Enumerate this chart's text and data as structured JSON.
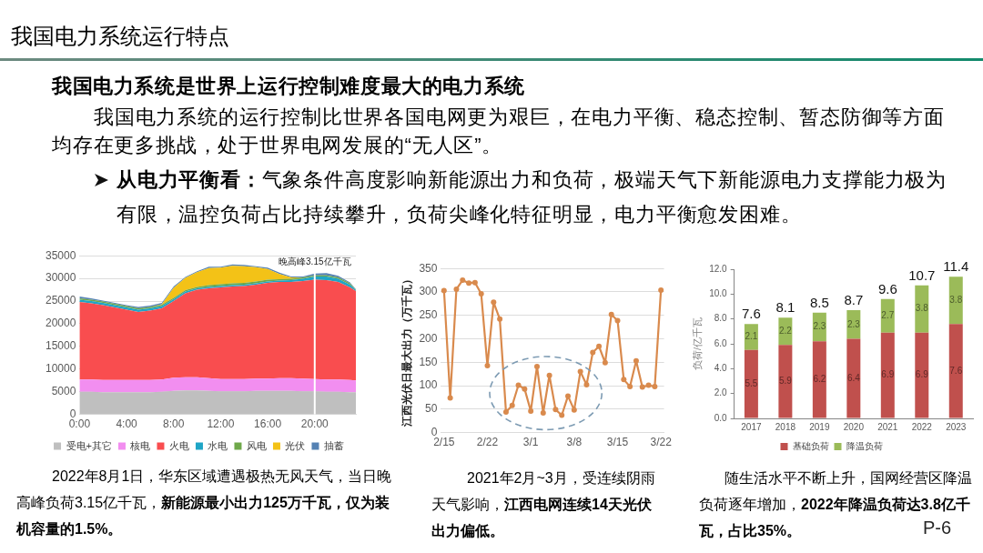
{
  "chart_data": [
    {
      "type": "other",
      "title": "我国电力系统运行特点",
      "subtitle": "我国电力系统是世界上运行控制难度最大的电力系统",
      "annotations": [
        "我国电力系统的运行控制比世界各国电网更为艰巨，在电力平衡、稳态控制、暂态防御等方面均存在更多挑战，处于世界电网发展的“无人区”。",
        "从电力平衡看：",
        "气象条件高度影响新能源出力和负荷，极端天气下新能源电力支撑能力极为",
        "有限，温控负荷占比持续攀升，负荷尖峰化特征明显，电力平衡愈发困难。",
        "P-6"
      ]
    },
    {
      "type": "area",
      "stacked": true,
      "x": [
        0,
        1,
        2,
        3,
        4,
        5,
        6,
        7,
        8,
        9,
        10,
        11,
        12,
        13,
        14,
        15,
        16,
        17,
        18,
        19,
        20,
        21,
        22,
        23,
        23.5
      ],
      "xlim": [
        0,
        23.5
      ],
      "xticks": [
        {
          "value": 0,
          "label": "0:00"
        },
        {
          "value": 4,
          "label": "4:00"
        },
        {
          "value": 8,
          "label": "8:00"
        },
        {
          "value": 12,
          "label": "12:00"
        },
        {
          "value": 16,
          "label": "16:00"
        },
        {
          "value": 20,
          "label": "20:00"
        }
      ],
      "ylim": [
        0,
        35000
      ],
      "yticks": [
        0,
        5000,
        10000,
        15000,
        20000,
        25000,
        30000,
        35000
      ],
      "grid": "y",
      "legend": "bottom",
      "series": [
        {
          "name": "受电+其它",
          "color": "#bfbfbf",
          "values": [
            5000,
            5000,
            4900,
            4900,
            4900,
            4900,
            4900,
            5000,
            5200,
            5300,
            5300,
            5200,
            5100,
            5100,
            5100,
            5200,
            5200,
            5200,
            5200,
            5100,
            5100,
            5000,
            5000,
            4900,
            4900
          ]
        },
        {
          "name": "核电",
          "color": "#f28ef0",
          "values": [
            2700,
            2700,
            2700,
            2700,
            2700,
            2700,
            2700,
            2700,
            2900,
            2900,
            2900,
            2800,
            2700,
            2700,
            2700,
            2700,
            2700,
            2800,
            2800,
            2800,
            2700,
            2700,
            2700,
            2700,
            2600
          ]
        },
        {
          "name": "火电",
          "color": "#f94d4f",
          "values": [
            17100,
            16800,
            16500,
            16000,
            15500,
            15000,
            15300,
            15700,
            16900,
            18500,
            19300,
            19800,
            20200,
            20400,
            20500,
            20700,
            21100,
            21200,
            21200,
            21500,
            21900,
            21900,
            21500,
            20400,
            19700
          ]
        },
        {
          "name": "水电",
          "color": "#1fa5c6",
          "values": [
            500,
            500,
            500,
            500,
            500,
            500,
            500,
            500,
            400,
            400,
            300,
            300,
            300,
            300,
            300,
            300,
            300,
            300,
            400,
            500,
            700,
            800,
            700,
            600,
            200
          ]
        },
        {
          "name": "风电",
          "color": "#6fa84a",
          "values": [
            300,
            300,
            300,
            300,
            300,
            300,
            300,
            300,
            300,
            300,
            300,
            400,
            400,
            400,
            400,
            400,
            400,
            300,
            300,
            300,
            300,
            300,
            300,
            300,
            100
          ]
        },
        {
          "name": "光伏",
          "color": "#f3c217",
          "values": [
            0,
            0,
            0,
            0,
            0,
            0,
            0,
            100,
            2200,
            2700,
            3300,
            3800,
            3700,
            3900,
            3700,
            3200,
            2400,
            1200,
            300,
            0,
            0,
            0,
            0,
            0,
            0
          ]
        },
        {
          "name": "抽蓄",
          "color": "#5582b3",
          "values": [
            400,
            300,
            200,
            200,
            200,
            300,
            300,
            300,
            300,
            200,
            200,
            300,
            200,
            300,
            300,
            200,
            300,
            300,
            200,
            200,
            400,
            500,
            400,
            200,
            100
          ]
        }
      ],
      "ref_lines": [
        {
          "axis": "x",
          "value": 20,
          "label": "晚高峰3.15亿千瓦",
          "color": "#ffffff"
        }
      ],
      "annotations": [
        "2022年8月1日，华东区域遭遇极热无风天气，当日晚",
        "高峰负荷3.15亿千瓦，",
        "新能源最小出力125万千瓦，仅为装",
        "机容量的1.5%。"
      ]
    },
    {
      "type": "line",
      "categories": [
        "2/15",
        null,
        null,
        null,
        null,
        null,
        null,
        "2/22",
        null,
        null,
        null,
        null,
        null,
        null,
        "3/1",
        null,
        null,
        null,
        null,
        null,
        null,
        "3/8",
        null,
        null,
        null,
        null,
        null,
        null,
        "3/15",
        null,
        null,
        null,
        null,
        null,
        null,
        "3/22"
      ],
      "values": [
        303,
        74,
        306,
        325,
        319,
        320,
        296,
        143,
        278,
        242,
        44,
        58,
        101,
        93,
        46,
        141,
        42,
        122,
        49,
        37,
        78,
        48,
        130,
        102,
        171,
        184,
        149,
        252,
        239,
        113,
        98,
        153,
        97,
        101,
        98,
        304
      ],
      "color": "#d98a4d",
      "marker": "circle",
      "ylabel": "江西光伏日最大出力（万千瓦）",
      "ylim": [
        0,
        350
      ],
      "yticks": [
        0,
        50,
        100,
        150,
        200,
        250,
        300,
        350
      ],
      "grid": "y",
      "annotations": [
        "2021年2月~3月，受连续阴雨",
        "天气影响，",
        "江西电网连续14天光伏",
        "出力偏低。"
      ]
    },
    {
      "type": "bar",
      "stacked": true,
      "categories": [
        "2017",
        "2018",
        "2019",
        "2020",
        "2021",
        "2022",
        "2023"
      ],
      "series": [
        {
          "name": "基础负荷",
          "color": "#c0504d",
          "values": [
            5.5,
            5.9,
            6.2,
            6.4,
            6.9,
            6.9,
            7.6
          ]
        },
        {
          "name": "降温负荷",
          "color": "#9bbb59",
          "values": [
            2.1,
            2.2,
            2.3,
            2.3,
            2.7,
            3.8,
            3.8
          ]
        }
      ],
      "data_labels": true,
      "totals": [
        "7.6",
        "8.1",
        "8.5",
        "8.7",
        "9.6",
        "10.7",
        "11.4"
      ],
      "ylabel": "负荷/亿千瓦",
      "ylim": [
        0,
        12
      ],
      "yticks": [
        {
          "value": 0,
          "label": "0.0"
        },
        {
          "value": 2,
          "label": "2.0"
        },
        {
          "value": 4,
          "label": "4.0"
        },
        {
          "value": 6,
          "label": "6.0"
        },
        {
          "value": 8,
          "label": "8.0"
        },
        {
          "value": 10,
          "label": "10.0"
        },
        {
          "value": 12,
          "label": "12.0"
        }
      ],
      "legend": "bottom",
      "annotations": [
        "随生活水平不断上升，国网经营区降温",
        "负荷逐年增加，",
        "2022年降温负荷达3.8亿千",
        "瓦，占比35%。"
      ]
    }
  ]
}
